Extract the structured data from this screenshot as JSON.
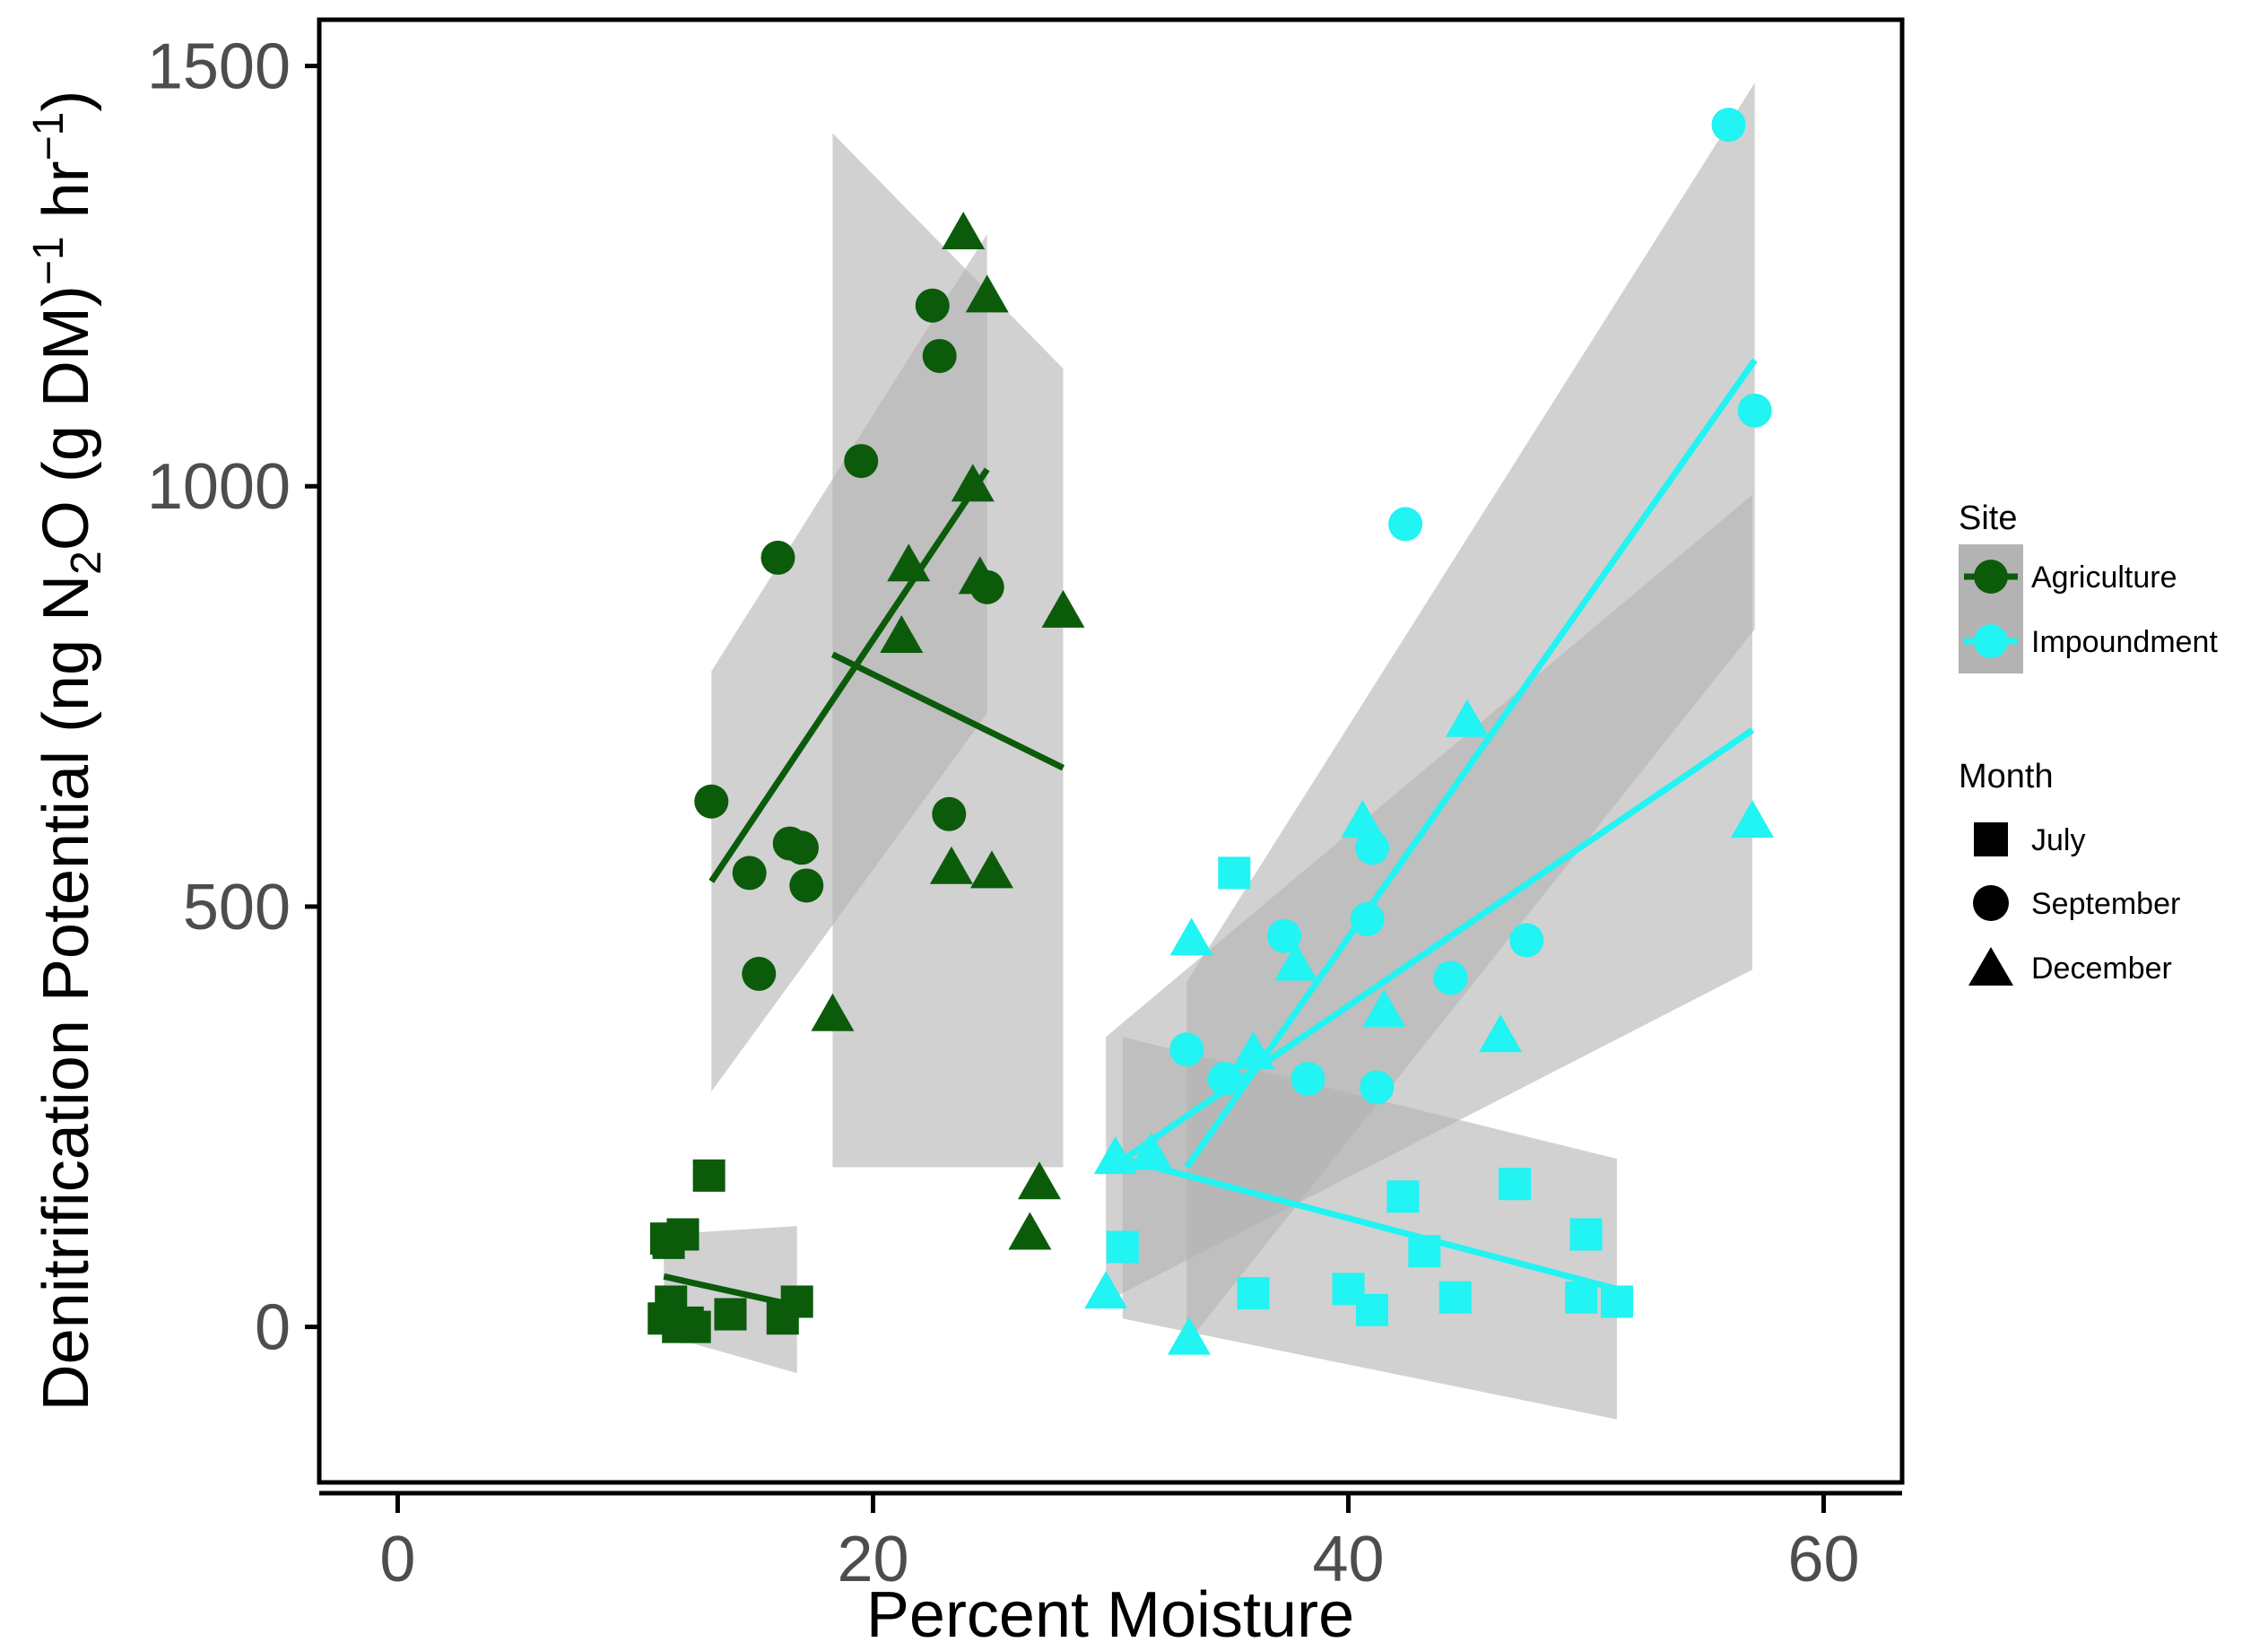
{
  "chart_data": {
    "type": "scatter",
    "title": "",
    "xlabel": "Percent Moisture",
    "ylabel": {
      "prefix": "Denitrification Potential (ng N",
      "sub": "2",
      "mid": "O (g DM)",
      "sup1": "−1",
      "mid2": " hr",
      "sup2": "−1",
      "suffix": ")"
    },
    "xlim": [
      -3.3,
      63.3
    ],
    "ylim": [
      -185,
      1555
    ],
    "x_ticks": [
      0,
      20,
      40,
      60
    ],
    "x_tick_labels": [
      "0",
      "20",
      "40",
      "60"
    ],
    "y_ticks": [
      0,
      500,
      1000,
      1500
    ],
    "y_tick_labels": [
      "0",
      "500",
      "1000",
      "1500"
    ],
    "grid": false,
    "legend_position": "right",
    "colors": {
      "Agriculture": "#0b5b0b",
      "Impoundment": "#22f3f3",
      "ribbon": "#b3b3b3"
    },
    "legend": {
      "site_title": "Site",
      "site_entries": [
        "Agriculture",
        "Impoundment"
      ],
      "month_title": "Month",
      "month_entries": [
        "July",
        "September",
        "December"
      ],
      "month_shapes": [
        "square",
        "circle",
        "triangle"
      ]
    },
    "series": [
      {
        "name": "Agriculture - July",
        "site": "Agriculture",
        "month": "July",
        "shape": "square",
        "x": [
          13.1,
          11.3,
          12.0,
          11.2,
          11.5,
          11.8,
          12.5,
          12.2,
          14.0,
          16.2,
          16.8,
          11.4
        ],
        "y": [
          180,
          105,
          110,
          10,
          30,
          0,
          0,
          5,
          15,
          10,
          30,
          100
        ]
      },
      {
        "name": "Agriculture - September",
        "site": "Agriculture",
        "month": "September",
        "shape": "circle",
        "x": [
          13.2,
          14.8,
          15.2,
          16.0,
          16.5,
          17.0,
          17.2,
          19.5,
          22.5,
          22.8,
          23.2,
          24.8
        ],
        "y": [
          625,
          540,
          420,
          915,
          575,
          570,
          525,
          1030,
          1215,
          1155,
          610,
          880
        ]
      },
      {
        "name": "Agriculture - December",
        "site": "Agriculture",
        "month": "December",
        "shape": "triangle",
        "x": [
          18.3,
          21.2,
          21.5,
          23.3,
          23.8,
          24.2,
          24.5,
          24.8,
          25.0,
          26.6,
          27.0,
          28.0
        ],
        "y": [
          370,
          820,
          905,
          545,
          1300,
          1000,
          890,
          1225,
          540,
          110,
          170,
          850
        ]
      },
      {
        "name": "Impoundment - July",
        "site": "Impoundment",
        "month": "July",
        "shape": "square",
        "x": [
          30.5,
          35.2,
          36.0,
          40.0,
          41.0,
          42.3,
          43.2,
          44.5,
          47.0,
          49.8,
          50.0,
          51.3
        ],
        "y": [
          95,
          540,
          40,
          45,
          20,
          155,
          90,
          35,
          170,
          35,
          110,
          30
        ]
      },
      {
        "name": "Impoundment - September",
        "site": "Impoundment",
        "month": "September",
        "shape": "circle",
        "x": [
          33.2,
          34.8,
          37.3,
          38.3,
          40.8,
          41.0,
          41.2,
          42.4,
          44.3,
          47.5,
          56.0,
          57.1
        ],
        "y": [
          330,
          295,
          465,
          295,
          485,
          570,
          285,
          955,
          415,
          460,
          1430,
          1090
        ]
      },
      {
        "name": "Impoundment - December",
        "site": "Impoundment",
        "month": "December",
        "shape": "triangle",
        "x": [
          29.8,
          30.2,
          31.7,
          33.3,
          33.4,
          36.0,
          37.8,
          40.6,
          41.5,
          45.0,
          46.4,
          57.0
        ],
        "y": [
          40,
          200,
          205,
          -15,
          460,
          325,
          430,
          600,
          375,
          720,
          345,
          600
        ]
      }
    ],
    "fit_lines": [
      {
        "site": "Agriculture",
        "month": "July",
        "x": [
          11.2,
          16.8
        ],
        "y": [
          60,
          25
        ],
        "ci_lower": [
          -10,
          -55
        ],
        "ci_upper": [
          110,
          120
        ]
      },
      {
        "site": "Agriculture",
        "month": "September",
        "x": [
          13.2,
          24.8
        ],
        "y": [
          530,
          1020
        ],
        "ci_lower": [
          280,
          730
        ],
        "ci_upper": [
          780,
          1300
        ]
      },
      {
        "site": "Agriculture",
        "month": "December",
        "x": [
          18.3,
          28.0
        ],
        "y": [
          800,
          665
        ],
        "ci_lower": [
          190,
          190
        ],
        "ci_upper": [
          1420,
          1140
        ]
      },
      {
        "site": "Impoundment",
        "month": "July",
        "x": [
          30.5,
          51.3
        ],
        "y": [
          200,
          45
        ],
        "ci_lower": [
          10,
          -110
        ],
        "ci_upper": [
          345,
          200
        ]
      },
      {
        "site": "Impoundment",
        "month": "September",
        "x": [
          33.2,
          57.1
        ],
        "y": [
          190,
          1150
        ],
        "ci_lower": [
          -20,
          830
        ],
        "ci_upper": [
          410,
          1480
        ]
      },
      {
        "site": "Impoundment",
        "month": "December",
        "x": [
          29.8,
          57.0
        ],
        "y": [
          185,
          710
        ],
        "ci_lower": [
          30,
          425
        ],
        "ci_upper": [
          345,
          990
        ]
      }
    ]
  }
}
